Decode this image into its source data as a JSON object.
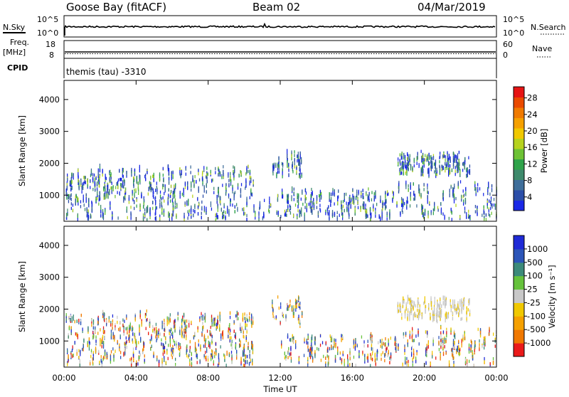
{
  "header": {
    "site": "Goose Bay (fitACF)",
    "beam": "Beam 02",
    "date": "04/Mar/2019"
  },
  "top_panels": {
    "nsky_label": "N.Sky",
    "nsky_ticks": [
      "10^5",
      "10^0"
    ],
    "nsearch_label": "N.Search",
    "nsearch_ticks": [
      "10^5",
      "10^0"
    ],
    "freq_label_1": "Freq.",
    "freq_label_2": "[MHz]",
    "freq_ticks": [
      "18",
      "8"
    ],
    "nave_label": "Nave",
    "nave_ticks": [
      "60",
      "0"
    ],
    "cpid_label": "CPID",
    "cpid_text": "themis (tau) -3310"
  },
  "chart_data": [
    {
      "type": "heatmap",
      "name": "power",
      "ylabel": "Slant Range [km]",
      "y_ticks": [
        1000,
        2000,
        3000,
        4000
      ],
      "ylim": [
        180,
        4600
      ],
      "xlim": [
        0,
        24
      ],
      "colorbar": {
        "label": "Power [dB]",
        "ticks": [
          "4",
          "8",
          "12",
          "16",
          "20",
          "24",
          "28"
        ],
        "colors": [
          "#1a28e6",
          "#2c4ea8",
          "#3f6e9a",
          "#3e8a6c",
          "#2fa34a",
          "#6dc235",
          "#b6d21e",
          "#f0c800",
          "#f5a000",
          "#f07a00",
          "#ea4a00",
          "#e61414"
        ]
      },
      "scatter_regions": [
        {
          "t0": 0.1,
          "t1": 10.5,
          "r0": 200,
          "r1": 1800,
          "density": 0.9,
          "level": [
            4,
            16
          ]
        },
        {
          "t0": 10.5,
          "t1": 11.9,
          "r0": 200,
          "r1": 900,
          "density": 0.3,
          "level": [
            4,
            10
          ]
        },
        {
          "t0": 11.5,
          "t1": 13.2,
          "r0": 1500,
          "r1": 2300,
          "density": 0.6,
          "level": [
            4,
            10
          ]
        },
        {
          "t0": 12.0,
          "t1": 18.5,
          "r0": 200,
          "r1": 1100,
          "density": 0.6,
          "level": [
            4,
            14
          ]
        },
        {
          "t0": 18.5,
          "t1": 22.5,
          "r0": 1650,
          "r1": 2250,
          "density": 0.8,
          "level": [
            4,
            14
          ]
        },
        {
          "t0": 18.5,
          "t1": 24.0,
          "r0": 200,
          "r1": 1300,
          "density": 0.5,
          "level": [
            4,
            16
          ]
        }
      ]
    },
    {
      "type": "heatmap",
      "name": "velocity",
      "xlabel": "Time UT",
      "ylabel": "Slant Range [km]",
      "x_ticks": [
        "00:00",
        "04:00",
        "08:00",
        "12:00",
        "16:00",
        "20:00",
        "00:00"
      ],
      "y_ticks": [
        1000,
        2000,
        3000,
        4000
      ],
      "ylim": [
        180,
        4600
      ],
      "xlim": [
        0,
        24
      ],
      "colorbar": {
        "label": "Velocity [m s⁻¹]",
        "ticks": [
          "1000",
          "500",
          "100",
          "25",
          "-25",
          "-100",
          "-500",
          "-1000"
        ],
        "colors": [
          "#1f2ad6",
          "#2c55b8",
          "#3c8a7a",
          "#66c23c",
          "#c8c8c8",
          "#f0c800",
          "#f5a000",
          "#f07800",
          "#ea1a1a"
        ]
      },
      "scatter_regions": [
        {
          "t0": 0.1,
          "t1": 10.5,
          "r0": 200,
          "r1": 1800,
          "density": 0.9,
          "level": [
            -1000,
            1000
          ]
        },
        {
          "t0": 11.5,
          "t1": 13.2,
          "r0": 1500,
          "r1": 2300,
          "density": 0.5,
          "level": [
            -100,
            100
          ]
        },
        {
          "t0": 12.0,
          "t1": 18.5,
          "r0": 200,
          "r1": 1100,
          "density": 0.5,
          "level": [
            -500,
            500
          ]
        },
        {
          "t0": 18.5,
          "t1": 22.5,
          "r0": 1650,
          "r1": 2250,
          "density": 0.8,
          "level": [
            -25,
            25
          ]
        },
        {
          "t0": 18.5,
          "t1": 24.0,
          "r0": 200,
          "r1": 1300,
          "density": 0.5,
          "level": [
            -1000,
            1000
          ]
        }
      ]
    }
  ]
}
